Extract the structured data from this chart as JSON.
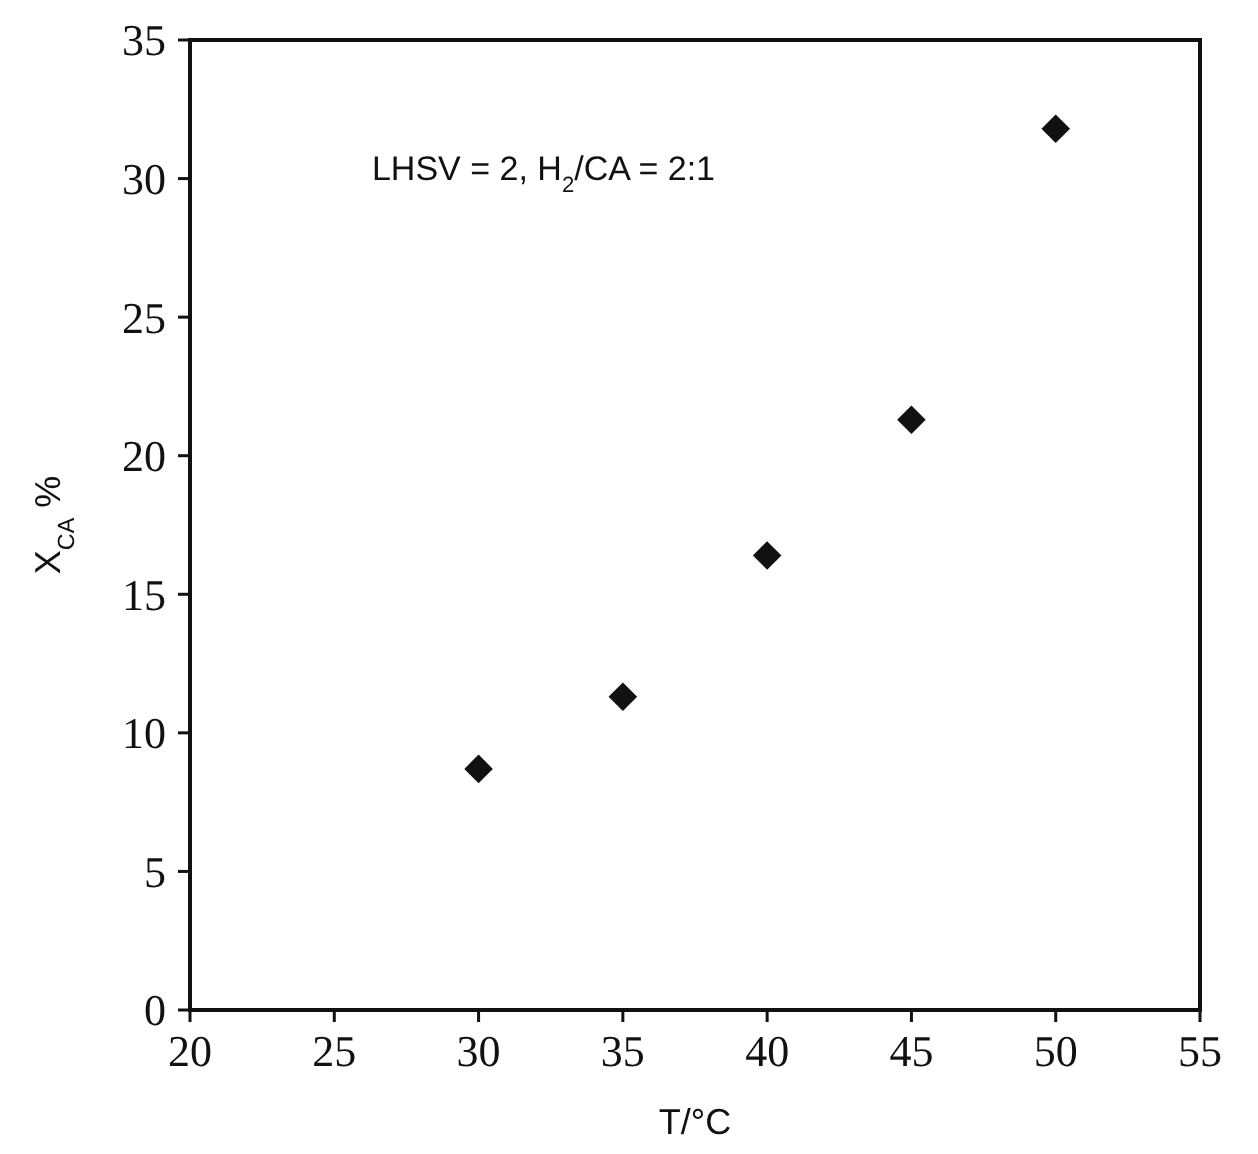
{
  "chart_data": {
    "type": "scatter",
    "xlabel": "T/°C",
    "ylabel": "X$_{CA}$ %",
    "annotations": [
      "LHSV = 2,  H$_{2}$/CA = 2:1"
    ],
    "x": [
      30,
      35,
      40,
      45,
      50
    ],
    "series": [
      {
        "color": "#111111",
        "values": [
          8.7,
          11.3,
          16.4,
          21.3,
          31.8
        ]
      }
    ],
    "marker": "diamond",
    "grid": false,
    "xlim": [
      20,
      55
    ],
    "xticks": [
      20,
      25,
      30,
      35,
      40,
      45,
      50,
      55
    ],
    "ylim": [
      0,
      35
    ],
    "yticks": [
      0,
      5,
      10,
      15,
      20,
      25,
      30,
      35
    ]
  }
}
